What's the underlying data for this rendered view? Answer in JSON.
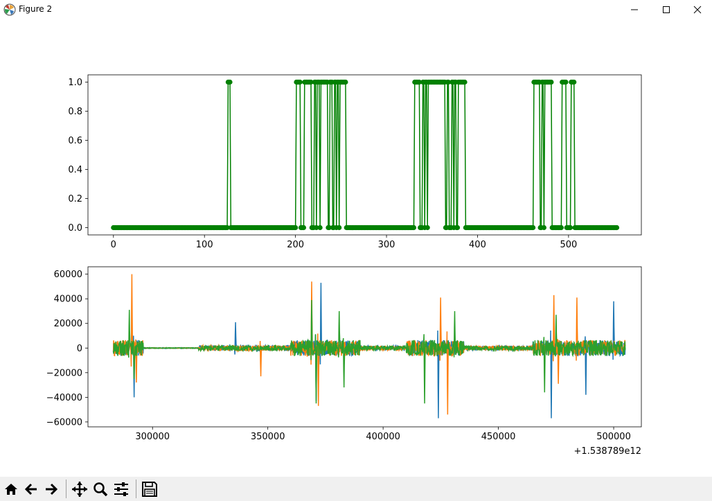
{
  "window": {
    "title": "Figure 2"
  },
  "toolbar": {
    "buttons": [
      "home",
      "back",
      "forward",
      "pan",
      "zoom",
      "configure-subplots",
      "save"
    ]
  },
  "colors": {
    "series_green": "#008000",
    "c0": "#1f77b4",
    "c1": "#ff7f0e",
    "c2": "#2ca02c"
  },
  "chart_data": [
    {
      "type": "line",
      "marker": "circle",
      "xlim": [
        -28,
        580
      ],
      "ylim": [
        -0.05,
        1.05
      ],
      "xticks": [
        0,
        100,
        200,
        300,
        400,
        500
      ],
      "yticks": [
        0.0,
        0.2,
        0.4,
        0.6,
        0.8,
        1.0
      ],
      "xtick_labels": [
        "0",
        "100",
        "200",
        "300",
        "400",
        "500"
      ],
      "ytick_labels": [
        "0.0",
        "0.2",
        "0.4",
        "0.6",
        "0.8",
        "1.0"
      ],
      "n_points": 554,
      "high_ranges": [
        [
          126,
          128
        ],
        [
          201,
          205
        ],
        [
          210,
          217
        ],
        [
          221,
          222
        ],
        [
          224,
          226
        ],
        [
          228,
          235
        ],
        [
          238,
          240
        ],
        [
          243,
          244
        ],
        [
          246,
          247
        ],
        [
          249,
          255
        ],
        [
          331,
          336
        ],
        [
          340,
          341
        ],
        [
          343,
          344
        ],
        [
          346,
          364
        ],
        [
          367,
          368
        ],
        [
          372,
          373
        ],
        [
          375,
          376
        ],
        [
          379,
          386
        ],
        [
          462,
          468
        ],
        [
          471,
          472
        ],
        [
          474,
          481
        ],
        [
          493,
          497
        ],
        [
          503,
          506
        ]
      ],
      "series": [
        {
          "color": "#008000"
        }
      ]
    },
    {
      "type": "line",
      "xlim": [
        272000,
        512000
      ],
      "ylim": [
        -64000,
        66000
      ],
      "xticks": [
        300000,
        350000,
        400000,
        450000,
        500000
      ],
      "yticks": [
        -60000,
        -40000,
        -20000,
        0,
        20000,
        40000,
        60000
      ],
      "xtick_labels": [
        "300000",
        "350000",
        "400000",
        "450000",
        "500000"
      ],
      "ytick_labels": [
        "−60000",
        "−40000",
        "−20000",
        "0",
        "20000",
        "40000",
        "60000"
      ],
      "offset_label": "+1.538789e12",
      "x_start": 283000,
      "x_end": 505000,
      "series": [
        {
          "color": "#1f77b4",
          "extremes": [
            [
              292000,
              -40000
            ],
            [
              336000,
              21000
            ],
            [
              371000,
              -43000
            ],
            [
              373000,
              53000
            ],
            [
              424000,
              -57000
            ],
            [
              473000,
              -57000
            ],
            [
              488000,
              -38000
            ],
            [
              500000,
              38000
            ]
          ]
        },
        {
          "color": "#ff7f0e",
          "extremes": [
            [
              291000,
              60000
            ],
            [
              293000,
              -28000
            ],
            [
              347000,
              -23000
            ],
            [
              369000,
              54000
            ],
            [
              372000,
              -47000
            ],
            [
              425000,
              41000
            ],
            [
              428000,
              -54000
            ],
            [
              474000,
              43000
            ],
            [
              476000,
              -29000
            ],
            [
              484000,
              41000
            ]
          ]
        },
        {
          "color": "#2ca02c",
          "extremes": [
            [
              290000,
              31000
            ],
            [
              292000,
              -25000
            ],
            [
              369000,
              39000
            ],
            [
              371000,
              -45000
            ],
            [
              381000,
              30000
            ],
            [
              383000,
              -32000
            ],
            [
              418000,
              -45000
            ],
            [
              431000,
              30000
            ],
            [
              470000,
              -36000
            ],
            [
              475000,
              27000
            ]
          ]
        }
      ]
    }
  ]
}
